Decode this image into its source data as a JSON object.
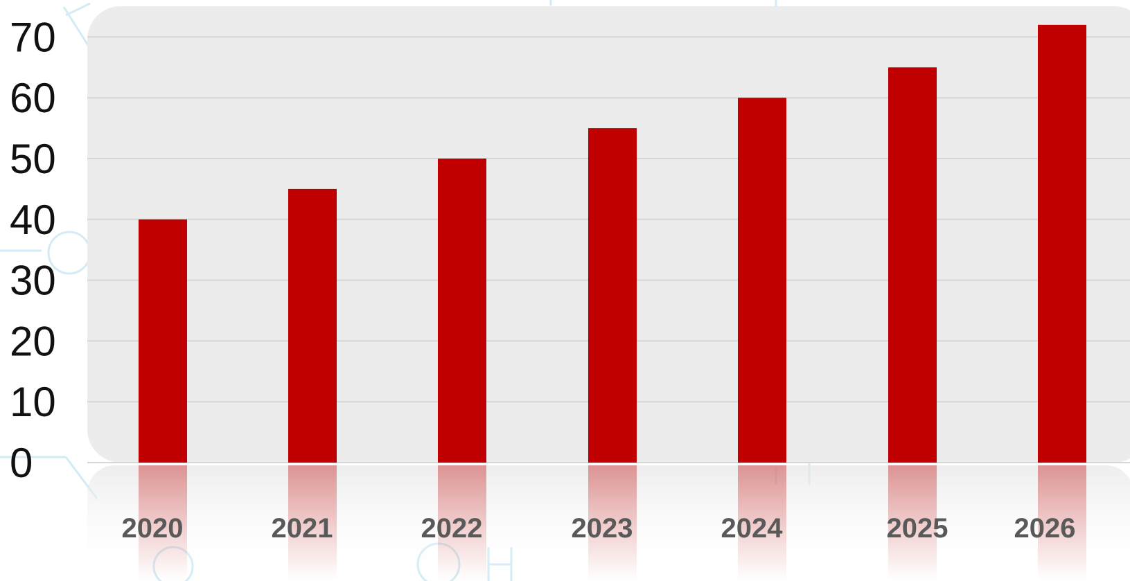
{
  "chart_data": {
    "type": "bar",
    "categories": [
      "2020",
      "2021",
      "2022",
      "2023",
      "2024",
      "2025",
      "2026"
    ],
    "values": [
      40,
      45,
      50,
      55,
      60,
      65,
      72
    ],
    "ylim": [
      0,
      72
    ],
    "yticks": [
      0,
      10,
      20,
      30,
      40,
      50,
      60,
      70
    ],
    "grid": true,
    "legend": "none",
    "colors": {
      "bar": "#c00000",
      "plot_background": "#ececec",
      "gridline": "#d6d6d6",
      "tick_label": "#595959",
      "y_label": "#111111"
    }
  }
}
